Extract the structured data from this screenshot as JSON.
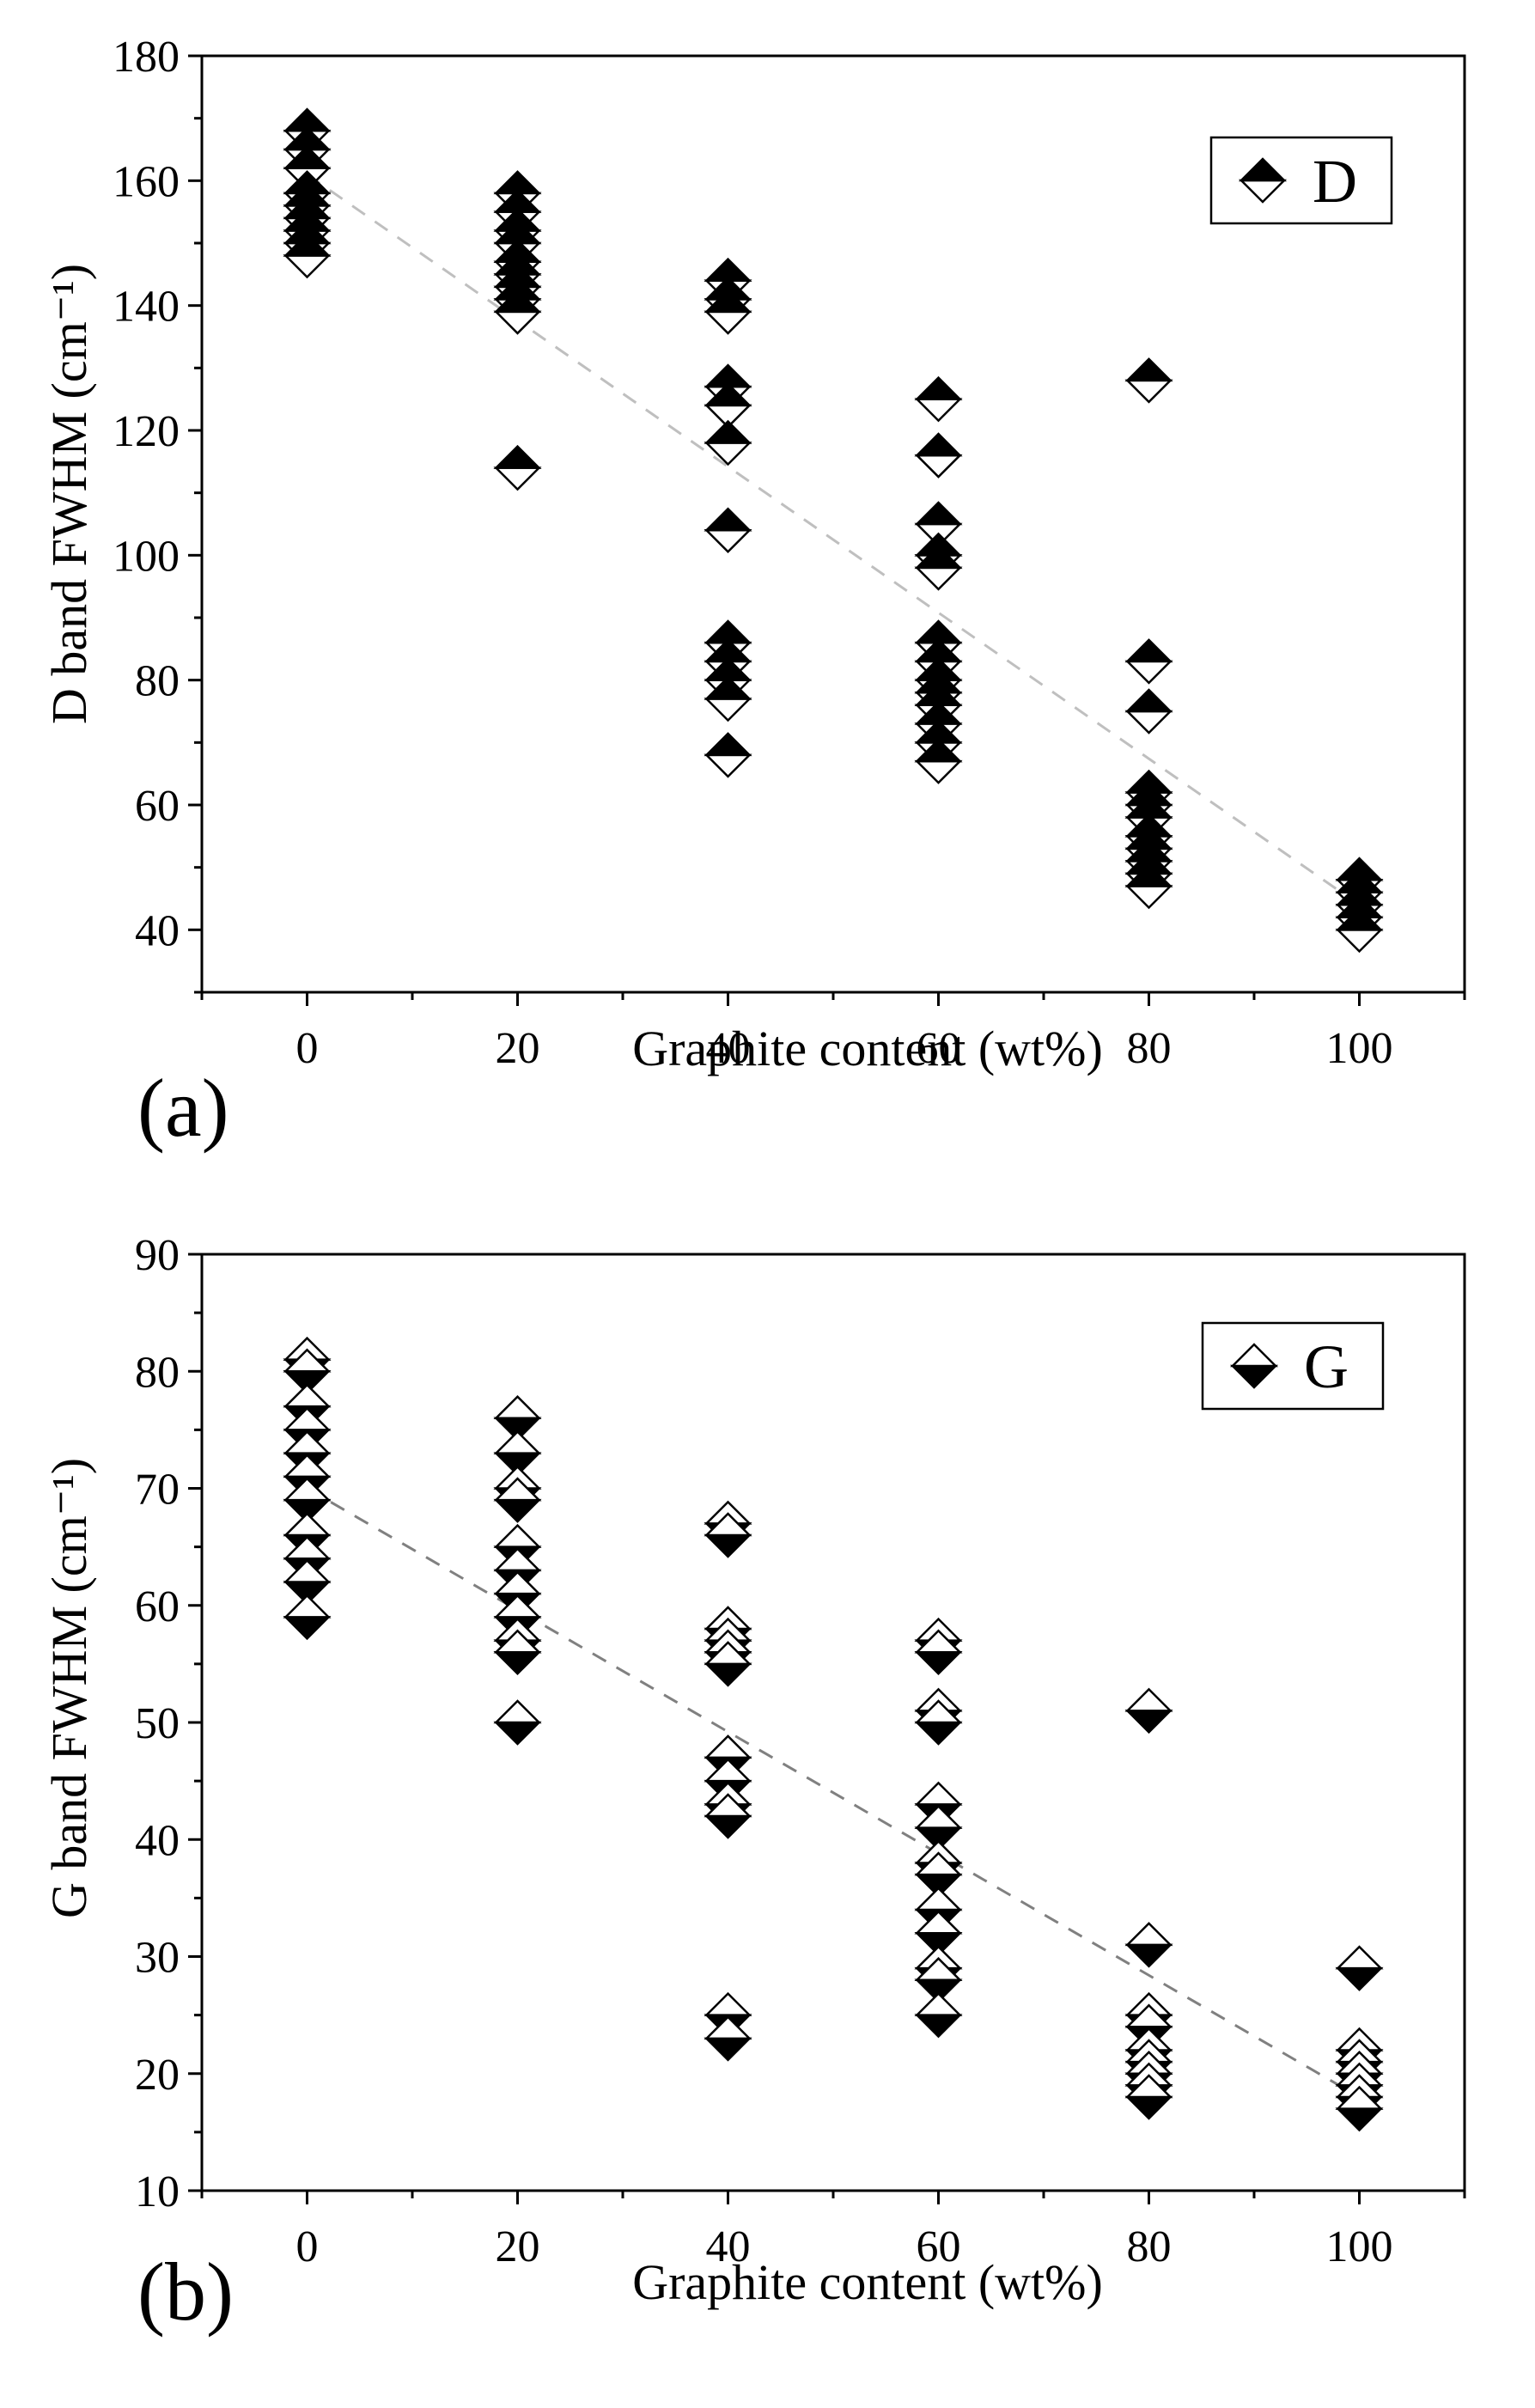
{
  "chart_data": [
    {
      "type": "scatter",
      "panel_label": "(a)",
      "xlabel": "Graphite content (wt%)",
      "ylabel": "D band FWHM (cm⁻¹)",
      "xlim": [
        -10,
        110
      ],
      "ylim": [
        30,
        180
      ],
      "x_ticks": [
        "0",
        "20",
        "40",
        "60",
        "80",
        "100"
      ],
      "y_ticks": [
        "40",
        "60",
        "80",
        "100",
        "120",
        "140",
        "160",
        "180"
      ],
      "legend": "D",
      "legend_position": "top-right",
      "marker": "diamond-half-filled-top",
      "trendline": {
        "x": [
          0,
          100
        ],
        "y": [
          161,
          44
        ],
        "color": "#bfbfbf",
        "style": "dashed"
      },
      "series": [
        {
          "name": "D",
          "x": 0,
          "values": [
            168,
            165,
            162,
            158,
            156,
            154,
            152,
            150,
            148
          ]
        },
        {
          "name": "D",
          "x": 20,
          "values": [
            158,
            155,
            152,
            150,
            147,
            145,
            143,
            141,
            139,
            114
          ]
        },
        {
          "name": "D",
          "x": 40,
          "values": [
            144,
            141,
            139,
            127,
            124,
            118,
            104,
            86,
            83,
            80,
            77,
            68
          ]
        },
        {
          "name": "D",
          "x": 60,
          "values": [
            125,
            116,
            105,
            100,
            98,
            86,
            83,
            80,
            78,
            76,
            73,
            70,
            67
          ]
        },
        {
          "name": "D",
          "x": 80,
          "values": [
            128,
            83,
            75,
            62,
            60,
            58,
            55,
            53,
            51,
            49,
            47
          ]
        },
        {
          "name": "D",
          "x": 100,
          "values": [
            48,
            46,
            44,
            42,
            40
          ]
        }
      ]
    },
    {
      "type": "scatter",
      "panel_label": "(b)",
      "xlabel": "Graphite content (wt%)",
      "ylabel": "G band FWHM (cm⁻¹)",
      "xlim": [
        -10,
        110
      ],
      "ylim": [
        10,
        90
      ],
      "x_ticks": [
        "0",
        "20",
        "40",
        "60",
        "80",
        "100"
      ],
      "y_ticks": [
        "10",
        "20",
        "30",
        "40",
        "50",
        "60",
        "70",
        "80",
        "90"
      ],
      "legend": "G",
      "legend_position": "top-right",
      "marker": "diamond-half-filled-bottom",
      "trendline": {
        "x": [
          0,
          100
        ],
        "y": [
          70,
          18
        ],
        "color": "#808080",
        "style": "dashed"
      },
      "series": [
        {
          "name": "G",
          "x": 0,
          "values": [
            81,
            80,
            77,
            75,
            73,
            71,
            69,
            66,
            64,
            62,
            59
          ]
        },
        {
          "name": "G",
          "x": 20,
          "values": [
            76,
            73,
            70,
            69,
            65,
            63,
            61,
            59,
            57,
            56,
            50
          ]
        },
        {
          "name": "G",
          "x": 40,
          "values": [
            67,
            66,
            58,
            57,
            56,
            55,
            47,
            45,
            43,
            42,
            25,
            23
          ]
        },
        {
          "name": "G",
          "x": 60,
          "values": [
            57,
            56,
            51,
            50,
            43,
            41,
            38,
            37,
            34,
            32,
            29,
            28,
            25
          ]
        },
        {
          "name": "G",
          "x": 80,
          "values": [
            51,
            31,
            25,
            24,
            22,
            21,
            20,
            19,
            18
          ]
        },
        {
          "name": "G",
          "x": 100,
          "values": [
            29,
            22,
            21,
            20,
            19,
            18,
            17
          ]
        }
      ]
    }
  ]
}
